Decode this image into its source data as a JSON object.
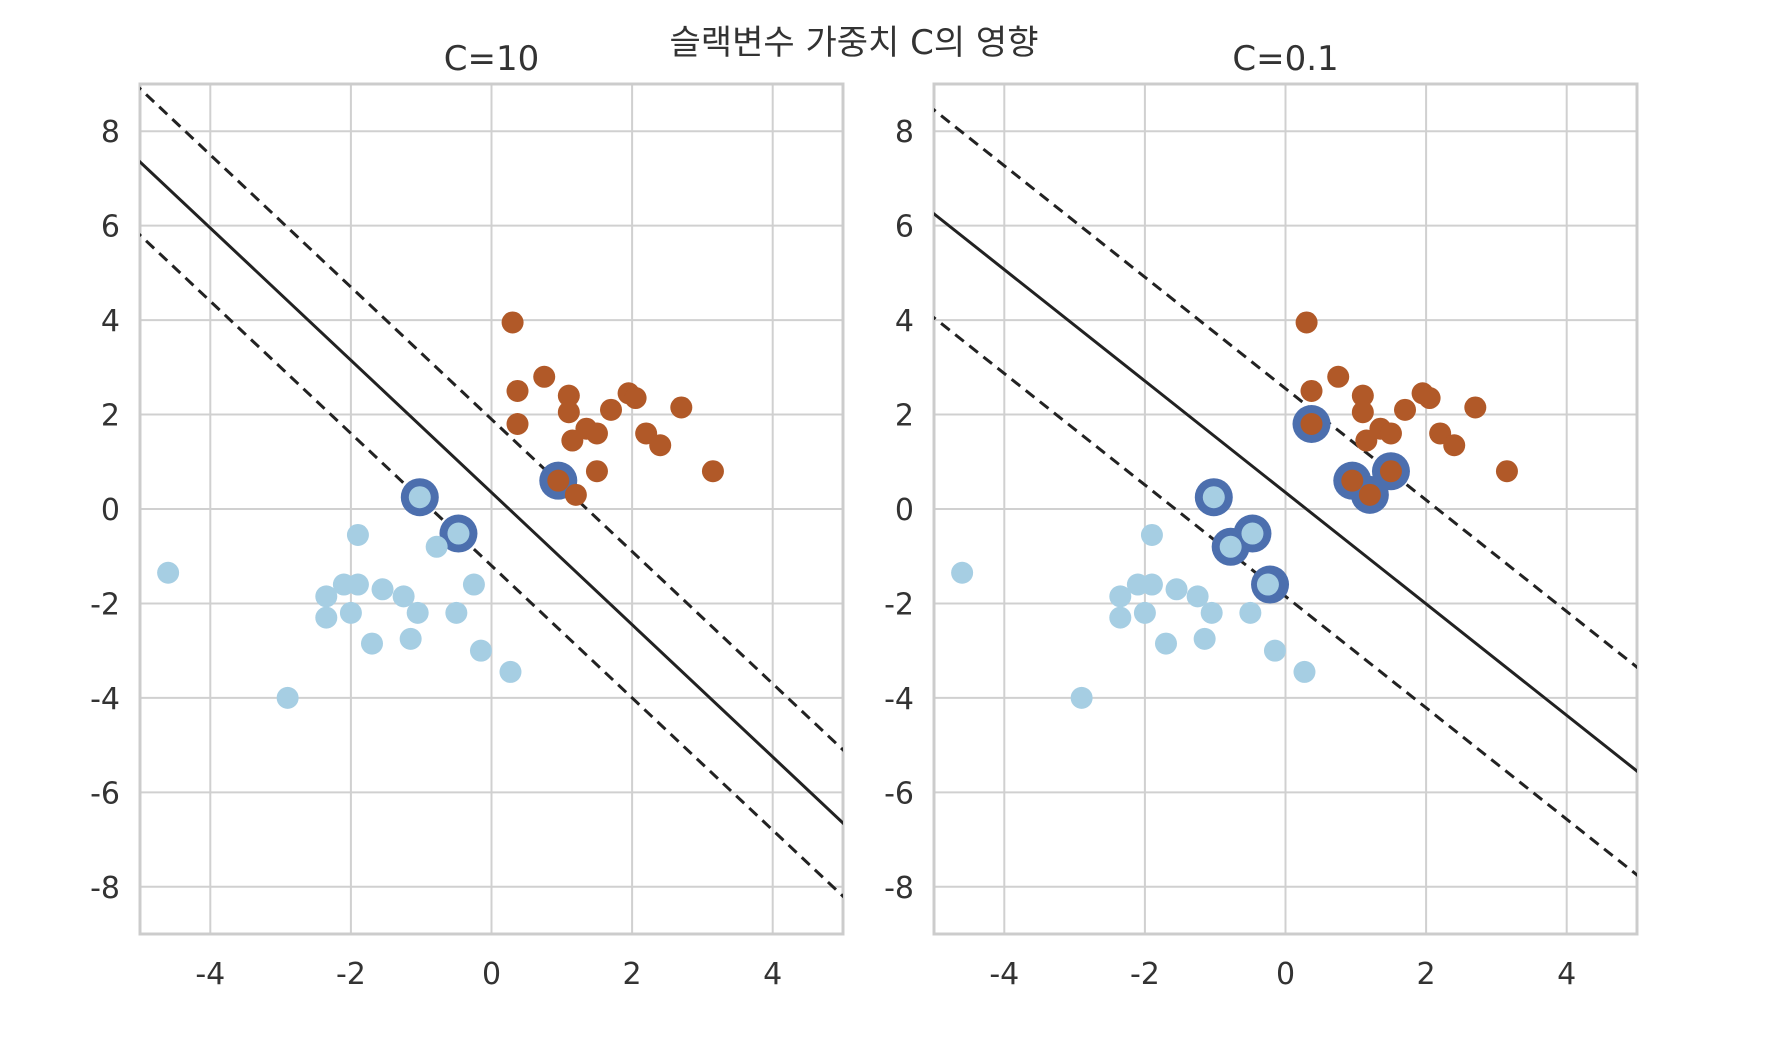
{
  "figure": {
    "suptitle": "슬랙변수 가중치 C의 영향"
  },
  "colors": {
    "class0": "#a6cee3",
    "class1": "#b15928",
    "support_ring": "#4c6fae",
    "grid": "#d0d0d0",
    "frame": "#cccccc",
    "line": "#222222"
  },
  "chart_data": [
    {
      "type": "scatter",
      "title": "C=10",
      "xlim": [
        -5,
        5
      ],
      "ylim": [
        -9,
        9
      ],
      "xticks": [
        -4,
        -2,
        0,
        2,
        4
      ],
      "yticks": [
        -8,
        -6,
        -4,
        -2,
        0,
        2,
        4,
        6,
        8
      ],
      "grid": true,
      "decision_boundary": {
        "slope": -1.4,
        "intercept": 0.35,
        "style": "solid"
      },
      "margins": [
        {
          "slope": -1.4,
          "intercept": 1.9,
          "style": "dashed"
        },
        {
          "slope": -1.4,
          "intercept": -1.2,
          "style": "dashed"
        }
      ],
      "support_vectors": [
        [
          -1.02,
          0.25
        ],
        [
          -0.47,
          -0.52
        ],
        [
          0.95,
          0.6
        ]
      ]
    },
    {
      "type": "scatter",
      "title": "C=0.1",
      "xlim": [
        -5,
        5
      ],
      "ylim": [
        -9,
        9
      ],
      "xticks": [
        -4,
        -2,
        0,
        2,
        4
      ],
      "yticks": [
        -8,
        -6,
        -4,
        -2,
        0,
        2,
        4,
        6,
        8
      ],
      "grid": true,
      "decision_boundary": {
        "slope": -1.18,
        "intercept": 0.35,
        "style": "solid"
      },
      "margins": [
        {
          "slope": -1.18,
          "intercept": 2.55,
          "style": "dashed"
        },
        {
          "slope": -1.18,
          "intercept": -1.85,
          "style": "dashed"
        }
      ],
      "support_vectors": [
        [
          0.37,
          1.8
        ],
        [
          0.95,
          0.6
        ],
        [
          1.5,
          0.8
        ],
        [
          1.2,
          0.3
        ],
        [
          -1.02,
          0.25
        ],
        [
          -0.47,
          -0.52
        ],
        [
          -0.78,
          -0.8
        ],
        [
          -0.22,
          -1.6
        ]
      ]
    }
  ],
  "points": {
    "class0": [
      [
        -4.6,
        -1.35
      ],
      [
        -2.9,
        -4.0
      ],
      [
        -2.35,
        -2.3
      ],
      [
        -2.35,
        -1.85
      ],
      [
        -2.1,
        -1.6
      ],
      [
        -2.0,
        -2.2
      ],
      [
        -1.9,
        -1.6
      ],
      [
        -1.9,
        -0.55
      ],
      [
        -1.7,
        -2.85
      ],
      [
        -1.55,
        -1.7
      ],
      [
        -1.25,
        -1.85
      ],
      [
        -1.15,
        -2.75
      ],
      [
        -1.05,
        -2.2
      ],
      [
        -1.02,
        0.25
      ],
      [
        -0.78,
        -0.8
      ],
      [
        -0.5,
        -2.2
      ],
      [
        -0.47,
        -0.52
      ],
      [
        -0.25,
        -1.6
      ],
      [
        -0.15,
        -3.0
      ],
      [
        0.27,
        -3.45
      ]
    ],
    "class1": [
      [
        0.3,
        3.95
      ],
      [
        0.37,
        2.5
      ],
      [
        0.37,
        1.8
      ],
      [
        0.75,
        2.8
      ],
      [
        0.95,
        0.6
      ],
      [
        1.1,
        2.4
      ],
      [
        1.1,
        2.05
      ],
      [
        1.15,
        1.45
      ],
      [
        1.2,
        0.3
      ],
      [
        1.35,
        1.7
      ],
      [
        1.5,
        0.8
      ],
      [
        1.5,
        1.6
      ],
      [
        1.7,
        2.1
      ],
      [
        1.95,
        2.45
      ],
      [
        2.05,
        2.35
      ],
      [
        2.2,
        1.6
      ],
      [
        2.4,
        1.35
      ],
      [
        2.7,
        2.15
      ],
      [
        3.15,
        0.8
      ]
    ]
  }
}
